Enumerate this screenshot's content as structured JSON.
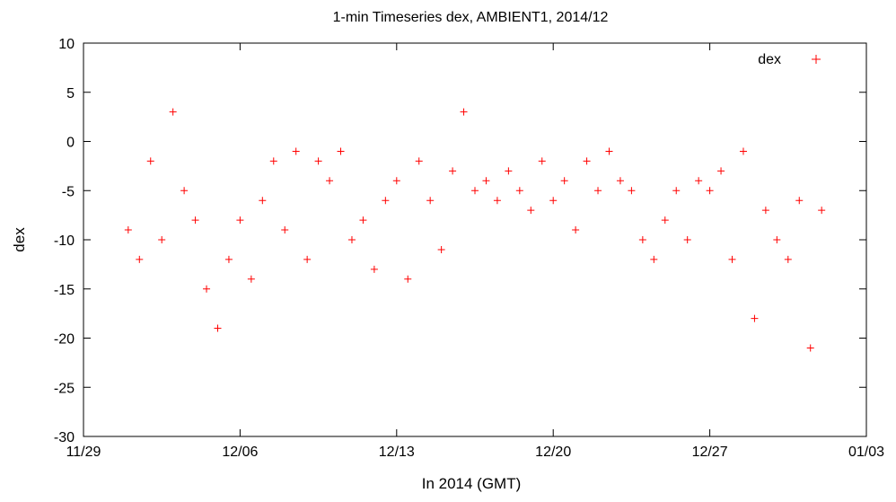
{
  "chart_data": {
    "type": "scatter",
    "title": "1-min Timeseries dex, AMBIENT1, 2014/12",
    "xlabel": "In 2014 (GMT)",
    "ylabel": "dex",
    "xlim": [
      "2014-11-29",
      "2015-01-03"
    ],
    "ylim": [
      -30,
      10
    ],
    "x_ticks": [
      "11/29",
      "12/06",
      "12/13",
      "12/20",
      "12/27",
      "01/03"
    ],
    "y_ticks": [
      "-30",
      "-25",
      "-20",
      "-15",
      "-10",
      "-5",
      "0",
      "5",
      "10"
    ],
    "grid": false,
    "legend": {
      "position": "top-right",
      "entries": [
        "dex"
      ]
    },
    "marker": "+",
    "series_color": "#ff0000",
    "series": [
      {
        "name": "dex",
        "x": [
          "12/01 00:00",
          "12/01 12:00",
          "12/02 00:00",
          "12/02 12:00",
          "12/03 00:00",
          "12/03 12:00",
          "12/04 00:00",
          "12/04 12:00",
          "12/05 00:00",
          "12/05 12:00",
          "12/06 00:00",
          "12/06 12:00",
          "12/07 00:00",
          "12/07 12:00",
          "12/08 00:00",
          "12/08 12:00",
          "12/09 00:00",
          "12/09 12:00",
          "12/10 00:00",
          "12/10 12:00",
          "12/11 00:00",
          "12/11 12:00",
          "12/12 00:00",
          "12/12 12:00",
          "12/13 00:00",
          "12/13 12:00",
          "12/14 00:00",
          "12/14 12:00",
          "12/15 00:00",
          "12/15 12:00",
          "12/16 00:00",
          "12/16 12:00",
          "12/17 00:00",
          "12/17 12:00",
          "12/18 00:00",
          "12/18 12:00",
          "12/19 00:00",
          "12/19 12:00",
          "12/20 00:00",
          "12/20 12:00",
          "12/21 00:00",
          "12/21 12:00",
          "12/22 00:00",
          "12/22 12:00",
          "12/23 00:00",
          "12/23 12:00",
          "12/24 00:00",
          "12/24 12:00",
          "12/25 00:00",
          "12/25 12:00",
          "12/26 00:00",
          "12/26 12:00",
          "12/27 00:00",
          "12/27 12:00",
          "12/28 00:00",
          "12/28 12:00",
          "12/29 00:00",
          "12/29 12:00",
          "12/30 00:00",
          "12/30 12:00",
          "12/31 00:00",
          "12/31 12:00",
          "01/01 00:00"
        ],
        "y": [
          -9,
          -12,
          -2,
          -10,
          3,
          -5,
          -8,
          -15,
          -19,
          -12,
          -8,
          -14,
          -6,
          -2,
          -9,
          -1,
          -12,
          -2,
          -4,
          -1,
          -10,
          -8,
          -13,
          -6,
          -4,
          -14,
          -2,
          -6,
          -11,
          -3,
          3,
          -5,
          -4,
          -6,
          -3,
          -5,
          -7,
          -2,
          -6,
          -4,
          -9,
          -2,
          -5,
          -1,
          -4,
          -5,
          -10,
          -12,
          -8,
          -5,
          -10,
          -4,
          -5,
          -3,
          -12,
          -1,
          -18,
          -7,
          -10,
          -12,
          -6,
          -21,
          -7
        ]
      }
    ]
  }
}
